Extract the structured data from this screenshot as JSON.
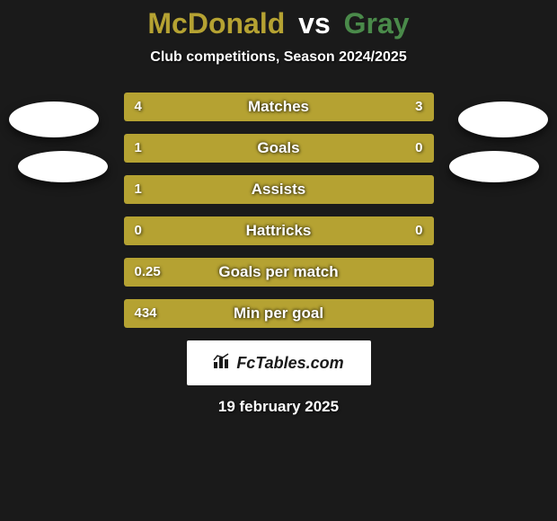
{
  "title": {
    "left": "McDonald",
    "vs": "vs",
    "right": "Gray",
    "left_color": "#b5a232",
    "right_color": "#4a8a4a"
  },
  "subtitle": "Club competitions, Season 2024/2025",
  "colors": {
    "left_bar": "#b5a232",
    "right_bar": "#b5a232",
    "bar_track": "#3a3a2a",
    "background": "#1a1a1a",
    "avatar": "#ffffff"
  },
  "bars": [
    {
      "label": "Matches",
      "left_val": "4",
      "right_val": "3",
      "left_pct": 57,
      "right_pct": 43,
      "left_fill": "#b5a232",
      "right_fill": "#b5a232"
    },
    {
      "label": "Goals",
      "left_val": "1",
      "right_val": "0",
      "left_pct": 77,
      "right_pct": 23,
      "left_fill": "#b5a232",
      "right_fill": "#b5a232"
    },
    {
      "label": "Assists",
      "left_val": "1",
      "right_val": "",
      "left_pct": 100,
      "right_pct": 0,
      "left_fill": "#b5a232",
      "right_fill": "#b5a232"
    },
    {
      "label": "Hattricks",
      "left_val": "0",
      "right_val": "0",
      "left_pct": 100,
      "right_pct": 0,
      "left_fill": "#b5a232",
      "right_fill": "#b5a232"
    },
    {
      "label": "Goals per match",
      "left_val": "0.25",
      "right_val": "",
      "left_pct": 100,
      "right_pct": 0,
      "left_fill": "#b5a232",
      "right_fill": "#b5a232"
    },
    {
      "label": "Min per goal",
      "left_val": "434",
      "right_val": "",
      "left_pct": 100,
      "right_pct": 0,
      "left_fill": "#b5a232",
      "right_fill": "#b5a232"
    }
  ],
  "logo": {
    "text": "FcTables.com"
  },
  "date": "19 february 2025"
}
